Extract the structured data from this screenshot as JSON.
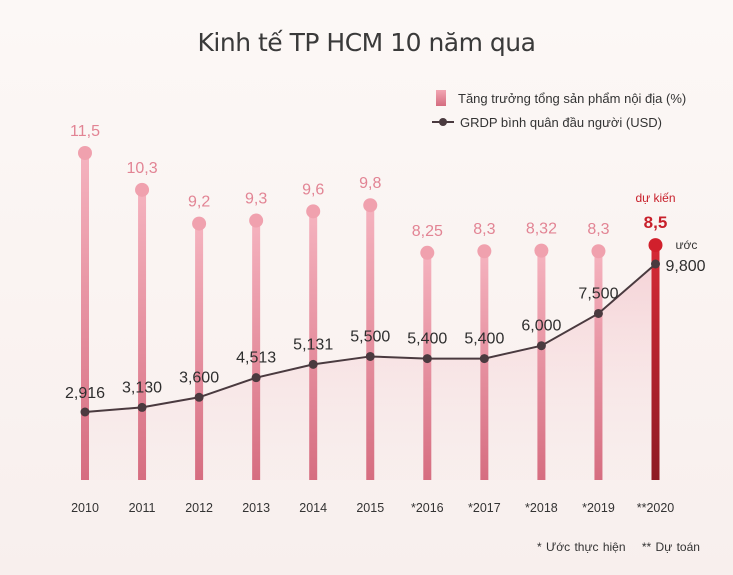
{
  "title": "Kinh tế TP HCM 10 năm qua",
  "legend": {
    "bars": "Tăng trưởng tổng sản phẩm nội địa (%)",
    "line": "GRDP bình quân đầu người (USD)"
  },
  "footnotes": {
    "estimate": "* Ước thực hiện",
    "forecast": "** Dự toán"
  },
  "annotations": {
    "forecast_label": "dự kiến",
    "estimate_label": "ước"
  },
  "colors": {
    "bar": "#e58a9b",
    "bar_label": "#e28494",
    "forecast": "#c8202b",
    "line": "#4a3a3f"
  },
  "chart_data": {
    "type": "bar",
    "title": "Kinh tế TP HCM 10 năm qua",
    "categories": [
      "2010",
      "2011",
      "2012",
      "2013",
      "2014",
      "2015",
      "*2016",
      "*2017",
      "*2018",
      "*2019",
      "**2020"
    ],
    "series": [
      {
        "name": "Tăng trưởng tổng sản phẩm nội địa (%)",
        "type": "bar",
        "values": [
          11.5,
          10.3,
          9.2,
          9.3,
          9.6,
          9.8,
          8.25,
          8.3,
          8.32,
          8.3,
          8.5
        ],
        "labels": [
          "11,5",
          "10,3",
          "9,2",
          "9,3",
          "9,6",
          "9,8",
          "8,25",
          "8,3",
          "8,32",
          "8,3",
          "8,5"
        ]
      },
      {
        "name": "GRDP bình quân đầu người (USD)",
        "type": "line",
        "values": [
          2916,
          3130,
          3600,
          4513,
          5131,
          5500,
          5400,
          5400,
          6000,
          7500,
          9800
        ],
        "labels": [
          "2,916",
          "3,130",
          "3,600",
          "4,513",
          "5,131",
          "5,500",
          "5,400",
          "5,400",
          "6,000",
          "7,500",
          "9,800"
        ]
      }
    ],
    "highlight_index": 10,
    "legend": "top-right",
    "grid": false
  }
}
